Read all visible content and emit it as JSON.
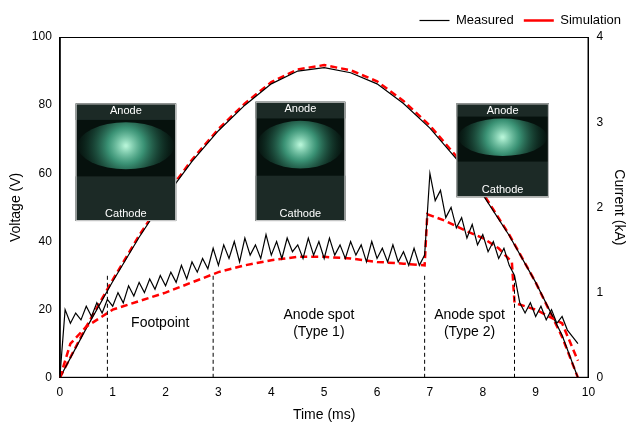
{
  "chart_data": {
    "type": "line",
    "x_label": "Time (ms)",
    "y_label": "Voltage (V)",
    "y2_label": "Current (kA)",
    "xlim": [
      0,
      10
    ],
    "xticks": [
      0,
      1,
      2,
      3,
      4,
      5,
      6,
      7,
      8,
      9,
      10
    ],
    "ylim": [
      0,
      100
    ],
    "yticks": [
      0,
      20,
      40,
      60,
      80,
      100
    ],
    "y2lim": [
      0,
      4
    ],
    "y2ticks": [
      0,
      1,
      2,
      3,
      4
    ],
    "grid": false,
    "legend": "upper right",
    "series": [
      {
        "name": "Measured",
        "color": "#000000",
        "line_style": "solid",
        "axis": "y",
        "x": [
          0,
          0.1,
          0.2,
          0.3,
          0.4,
          0.5,
          0.6,
          0.7,
          0.8,
          0.9,
          1.0,
          1.1,
          1.2,
          1.3,
          1.4,
          1.5,
          1.6,
          1.7,
          1.8,
          1.9,
          2.0,
          2.1,
          2.2,
          2.3,
          2.4,
          2.5,
          2.6,
          2.7,
          2.8,
          2.9,
          3.0,
          3.1,
          3.2,
          3.3,
          3.4,
          3.5,
          3.6,
          3.7,
          3.8,
          3.9,
          4.0,
          4.1,
          4.2,
          4.3,
          4.4,
          4.5,
          4.6,
          4.7,
          4.8,
          4.9,
          5.0,
          5.1,
          5.2,
          5.3,
          5.4,
          5.5,
          5.6,
          5.7,
          5.8,
          5.9,
          6.0,
          6.1,
          6.2,
          6.3,
          6.4,
          6.5,
          6.6,
          6.7,
          6.8,
          6.9,
          7.0,
          7.1,
          7.2,
          7.3,
          7.4,
          7.5,
          7.6,
          7.7,
          7.8,
          7.9,
          8.0,
          8.1,
          8.2,
          8.3,
          8.4,
          8.5,
          8.6,
          8.7,
          8.8,
          8.9,
          9.0,
          9.1,
          9.2,
          9.3,
          9.4,
          9.5,
          9.6,
          9.7,
          9.8
        ],
        "values": [
          0,
          20,
          16,
          19,
          17,
          21,
          18,
          22,
          19,
          23,
          21,
          25,
          22,
          27,
          24,
          28,
          25,
          29,
          26,
          30,
          27,
          31,
          28,
          33,
          29,
          34,
          31,
          35,
          32,
          38,
          33,
          39,
          35,
          40,
          34,
          41,
          36,
          39,
          35,
          42,
          36,
          40,
          35,
          41,
          37,
          39,
          35,
          41,
          36,
          40,
          35,
          41,
          36,
          39,
          35,
          40,
          36,
          39,
          34,
          40,
          35,
          38,
          34,
          39,
          34,
          37,
          33,
          38,
          33,
          36,
          60,
          52,
          55,
          47,
          50,
          44,
          47,
          41,
          45,
          39,
          42,
          37,
          40,
          35,
          38,
          33,
          30,
          22,
          19,
          22,
          18,
          21,
          17,
          20,
          16,
          18,
          14,
          12,
          10
        ]
      },
      {
        "name": "Simulation",
        "color": "#ff0000",
        "line_style": "dashed",
        "axis": "y",
        "x": [
          0,
          0.2,
          0.5,
          0.8,
          1,
          1.5,
          2,
          2.5,
          3,
          3.5,
          4,
          4.5,
          5,
          5.5,
          6,
          6.5,
          6.9,
          6.95,
          7.3,
          7.7,
          8,
          8.3,
          8.55,
          8.6,
          9,
          9.5,
          9.8
        ],
        "values": [
          0,
          10,
          15,
          18,
          20,
          22.5,
          25,
          28,
          31,
          33,
          34.5,
          35.5,
          35.5,
          35,
          34,
          33.5,
          33,
          48,
          46,
          43,
          41,
          38,
          34,
          22,
          20,
          16,
          5
        ]
      },
      {
        "name": "Measured",
        "color": "#000000",
        "line_style": "solid",
        "axis": "y2",
        "x": [
          0,
          0.5,
          1,
          1.5,
          2,
          2.5,
          3,
          3.5,
          4,
          4.5,
          5,
          5.5,
          6,
          6.5,
          7,
          7.5,
          8,
          8.5,
          9,
          9.5,
          9.8
        ],
        "values": [
          0,
          0.58,
          1.13,
          1.65,
          2.12,
          2.54,
          2.9,
          3.2,
          3.45,
          3.6,
          3.64,
          3.58,
          3.45,
          3.22,
          2.93,
          2.57,
          2.15,
          1.67,
          1.12,
          0.5,
          0
        ]
      },
      {
        "name": "Simulation",
        "color": "#ff0000",
        "line_style": "dashed",
        "axis": "y2",
        "x": [
          0,
          0.5,
          1,
          1.5,
          2,
          2.5,
          3,
          3.5,
          4,
          4.5,
          5,
          5.5,
          6,
          6.5,
          7,
          7.5,
          8,
          8.5,
          9,
          9.5,
          9.8
        ],
        "values": [
          0,
          0.6,
          1.15,
          1.67,
          2.14,
          2.56,
          2.92,
          3.22,
          3.47,
          3.62,
          3.67,
          3.61,
          3.48,
          3.25,
          2.96,
          2.6,
          2.17,
          1.68,
          1.12,
          0.48,
          0
        ]
      }
    ],
    "phases": [
      {
        "label": [
          "Footpoint"
        ],
        "start": 0.9,
        "end": 2.9
      },
      {
        "label": [
          "Anode spot",
          "(Type 1)"
        ],
        "start": 2.9,
        "end": 6.9
      },
      {
        "label": [
          "Anode spot",
          "(Type 2)"
        ],
        "start": 6.9,
        "end": 8.6
      }
    ],
    "insets": [
      {
        "top": "Anode",
        "bottom": "Cathode"
      },
      {
        "top": "Anode",
        "bottom": "Cathode"
      },
      {
        "top": "Anode",
        "bottom": "Cathode"
      }
    ]
  }
}
